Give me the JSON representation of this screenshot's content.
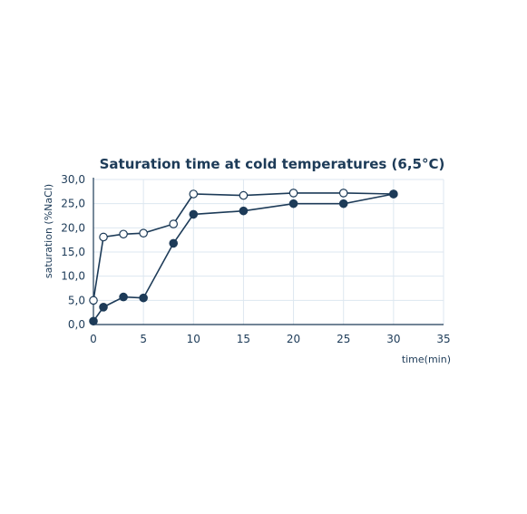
{
  "chart_data": {
    "type": "line",
    "title": "Saturation time at cold temperatures (6,5°C)",
    "xlabel": "time(min)",
    "ylabel": "saturation (%NaCl)",
    "xlim": [
      0,
      35
    ],
    "ylim": [
      0,
      30
    ],
    "x_ticks": [
      "0",
      "5",
      "10",
      "15",
      "20",
      "25",
      "30",
      "35"
    ],
    "y_ticks": [
      "0,0",
      "5,0",
      "10,0",
      "15,0",
      "20,0",
      "25,0",
      "30,0"
    ],
    "grid": true,
    "legend": "none",
    "colors": {
      "line": "#1d3b58",
      "grid": "#dde7f0",
      "axis": "#1d3b58",
      "marker_open_fill": "#ffffff",
      "marker_filled": "#1d3b58"
    },
    "series": [
      {
        "marker": "open-circle",
        "points": [
          {
            "x": 0,
            "y": 5.0
          },
          {
            "x": 1,
            "y": 18.1
          },
          {
            "x": 3,
            "y": 18.7
          },
          {
            "x": 5,
            "y": 18.9
          },
          {
            "x": 8,
            "y": 20.8
          },
          {
            "x": 10,
            "y": 27.0
          },
          {
            "x": 15,
            "y": 26.7
          },
          {
            "x": 20,
            "y": 27.2
          },
          {
            "x": 25,
            "y": 27.2
          },
          {
            "x": 30,
            "y": 27.0
          }
        ]
      },
      {
        "marker": "filled-circle",
        "points": [
          {
            "x": 0,
            "y": 0.7
          },
          {
            "x": 1,
            "y": 3.6
          },
          {
            "x": 3,
            "y": 5.7
          },
          {
            "x": 5,
            "y": 5.5
          },
          {
            "x": 8,
            "y": 16.8
          },
          {
            "x": 10,
            "y": 22.8
          },
          {
            "x": 15,
            "y": 23.5
          },
          {
            "x": 20,
            "y": 25.0
          },
          {
            "x": 25,
            "y": 25.0
          },
          {
            "x": 30,
            "y": 27.0
          }
        ]
      }
    ]
  }
}
